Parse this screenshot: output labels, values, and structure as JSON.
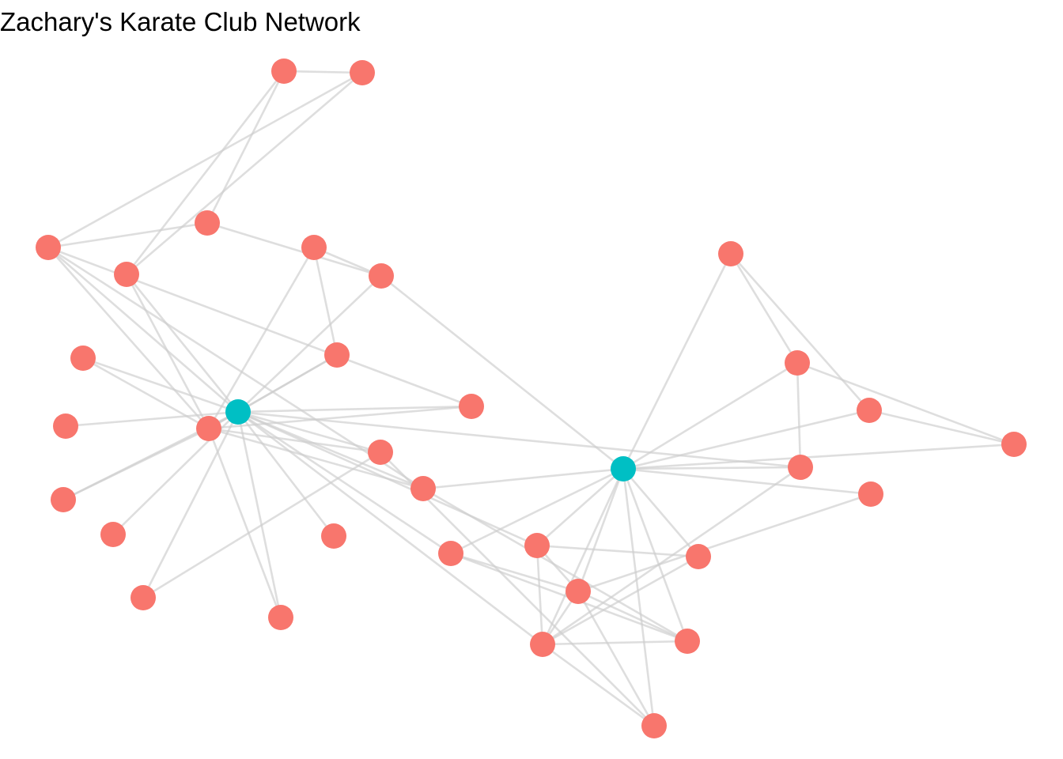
{
  "title": "Zachary's Karate Club Network",
  "colors": {
    "regular_node": "#F8766D",
    "hub_node": "#00BFC4",
    "edge": "#cccccc",
    "background": "#ffffff"
  },
  "graph": {
    "nodes": [
      {
        "id": "n01",
        "group": "hub"
      },
      {
        "id": "n02",
        "group": "hub"
      },
      {
        "id": "n03",
        "group": "member"
      },
      {
        "id": "n04",
        "group": "member"
      },
      {
        "id": "n05",
        "group": "member"
      },
      {
        "id": "n06",
        "group": "member"
      },
      {
        "id": "n07",
        "group": "member"
      },
      {
        "id": "n08",
        "group": "member"
      },
      {
        "id": "n09",
        "group": "member"
      },
      {
        "id": "n10",
        "group": "member"
      },
      {
        "id": "n11",
        "group": "member"
      },
      {
        "id": "n12",
        "group": "member"
      },
      {
        "id": "n13",
        "group": "member"
      },
      {
        "id": "n14",
        "group": "member"
      },
      {
        "id": "n15",
        "group": "member"
      },
      {
        "id": "n16",
        "group": "member"
      },
      {
        "id": "n17",
        "group": "member"
      },
      {
        "id": "n18",
        "group": "member"
      },
      {
        "id": "n19",
        "group": "member"
      },
      {
        "id": "n20",
        "group": "member"
      },
      {
        "id": "n21",
        "group": "member"
      },
      {
        "id": "n22",
        "group": "member"
      },
      {
        "id": "n23",
        "group": "member"
      },
      {
        "id": "n24",
        "group": "member"
      },
      {
        "id": "n25",
        "group": "member"
      },
      {
        "id": "n26",
        "group": "member"
      },
      {
        "id": "n27",
        "group": "member"
      },
      {
        "id": "n28",
        "group": "member"
      },
      {
        "id": "n29",
        "group": "member"
      },
      {
        "id": "n30",
        "group": "member"
      },
      {
        "id": "n31",
        "group": "member"
      },
      {
        "id": "n32",
        "group": "member"
      },
      {
        "id": "n33",
        "group": "member"
      },
      {
        "id": "n34",
        "group": "member"
      }
    ],
    "edges": [
      [
        "n03",
        "n04"
      ],
      [
        "n03",
        "n05"
      ],
      [
        "n03",
        "n09"
      ],
      [
        "n04",
        "n10"
      ],
      [
        "n04",
        "n09"
      ],
      [
        "n05",
        "n06"
      ],
      [
        "n05",
        "n10"
      ],
      [
        "n06",
        "n07"
      ],
      [
        "n06",
        "n02"
      ],
      [
        "n07",
        "n08"
      ],
      [
        "n08",
        "n01"
      ],
      [
        "n06",
        "n01"
      ],
      [
        "n01",
        "n11"
      ],
      [
        "n01",
        "n12"
      ],
      [
        "n01",
        "n13"
      ],
      [
        "n01",
        "n14"
      ],
      [
        "n01",
        "n15"
      ],
      [
        "n01",
        "n17"
      ],
      [
        "n01",
        "n18"
      ],
      [
        "n01",
        "n19"
      ],
      [
        "n01",
        "n20"
      ],
      [
        "n01",
        "n21"
      ],
      [
        "n01",
        "n22"
      ],
      [
        "n01",
        "n23"
      ],
      [
        "n01",
        "n24"
      ],
      [
        "n01",
        "n28"
      ],
      [
        "n01",
        "n16"
      ],
      [
        "n01",
        "n09"
      ],
      [
        "n01",
        "n10"
      ],
      [
        "n08",
        "n16"
      ],
      [
        "n07",
        "n16"
      ],
      [
        "n16",
        "n11"
      ],
      [
        "n16",
        "n13"
      ],
      [
        "n16",
        "n17"
      ],
      [
        "n16",
        "n19"
      ],
      [
        "n16",
        "n20"
      ],
      [
        "n16",
        "n21"
      ],
      [
        "n16",
        "n09"
      ],
      [
        "n16",
        "n10"
      ],
      [
        "n10",
        "n21"
      ],
      [
        "n10",
        "n20"
      ],
      [
        "n02",
        "n25"
      ],
      [
        "n02",
        "n26"
      ],
      [
        "n02",
        "n27"
      ],
      [
        "n02",
        "n29"
      ],
      [
        "n02",
        "n32"
      ],
      [
        "n02",
        "n23"
      ],
      [
        "n02",
        "n21"
      ],
      [
        "n02",
        "n31"
      ],
      [
        "n02",
        "n30"
      ],
      [
        "n02",
        "n33"
      ],
      [
        "n02",
        "n34"
      ],
      [
        "n02",
        "n28"
      ],
      [
        "n02",
        "n22"
      ],
      [
        "n02",
        "n24"
      ],
      [
        "n25",
        "n27"
      ],
      [
        "n25",
        "n26"
      ],
      [
        "n27",
        "n29"
      ],
      [
        "n26",
        "n28"
      ],
      [
        "n26",
        "n29"
      ],
      [
        "n23",
        "n24"
      ],
      [
        "n24",
        "n30"
      ],
      [
        "n24",
        "n31"
      ],
      [
        "n24",
        "n32"
      ],
      [
        "n24",
        "n33"
      ],
      [
        "n24",
        "n28"
      ],
      [
        "n22",
        "n30"
      ],
      [
        "n22",
        "n31"
      ],
      [
        "n30",
        "n32"
      ],
      [
        "n30",
        "n34"
      ],
      [
        "n23",
        "n30"
      ],
      [
        "n23",
        "n33"
      ],
      [
        "n30",
        "n31"
      ],
      [
        "n21",
        "n31"
      ],
      [
        "n19",
        "n32"
      ],
      [
        "n15",
        "n19"
      ]
    ]
  }
}
